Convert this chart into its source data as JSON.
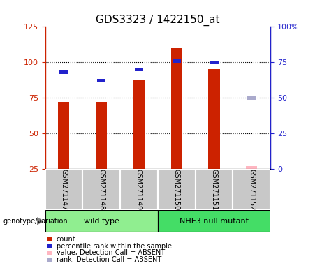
{
  "title": "GDS3323 / 1422150_at",
  "samples": [
    "GSM271147",
    "GSM271148",
    "GSM271149",
    "GSM271150",
    "GSM271151",
    "GSM271152"
  ],
  "groups": [
    {
      "label": "wild type",
      "color": "#90EE90",
      "start": 0,
      "end": 3
    },
    {
      "label": "NHE3 null mutant",
      "color": "#44DD66",
      "start": 3,
      "end": 6
    }
  ],
  "red_values": [
    72,
    72,
    88,
    110,
    95,
    27
  ],
  "blue_values": [
    68,
    62,
    70,
    76,
    75,
    null
  ],
  "absent_sample": 5,
  "absent_rank": 50,
  "ylim_left": [
    25,
    125
  ],
  "ylim_right": [
    0,
    100
  ],
  "yticks_left": [
    25,
    50,
    75,
    100,
    125
  ],
  "yticks_right": [
    0,
    25,
    50,
    75,
    100
  ],
  "ytick_labels_left": [
    "25",
    "50",
    "75",
    "100",
    "125"
  ],
  "ytick_labels_right": [
    "0",
    "25",
    "50",
    "75",
    "100%"
  ],
  "bar_width": 0.3,
  "red_color": "#CC2200",
  "blue_color": "#2222CC",
  "pink_color": "#FFB6C1",
  "lightblue_color": "#AAAACC",
  "group_label_text": "genotype/variation",
  "legend_items": [
    {
      "color": "#CC2200",
      "label": "count"
    },
    {
      "color": "#2222CC",
      "label": "percentile rank within the sample"
    },
    {
      "color": "#FFB6C1",
      "label": "value, Detection Call = ABSENT"
    },
    {
      "color": "#AAAACC",
      "label": "rank, Detection Call = ABSENT"
    }
  ]
}
